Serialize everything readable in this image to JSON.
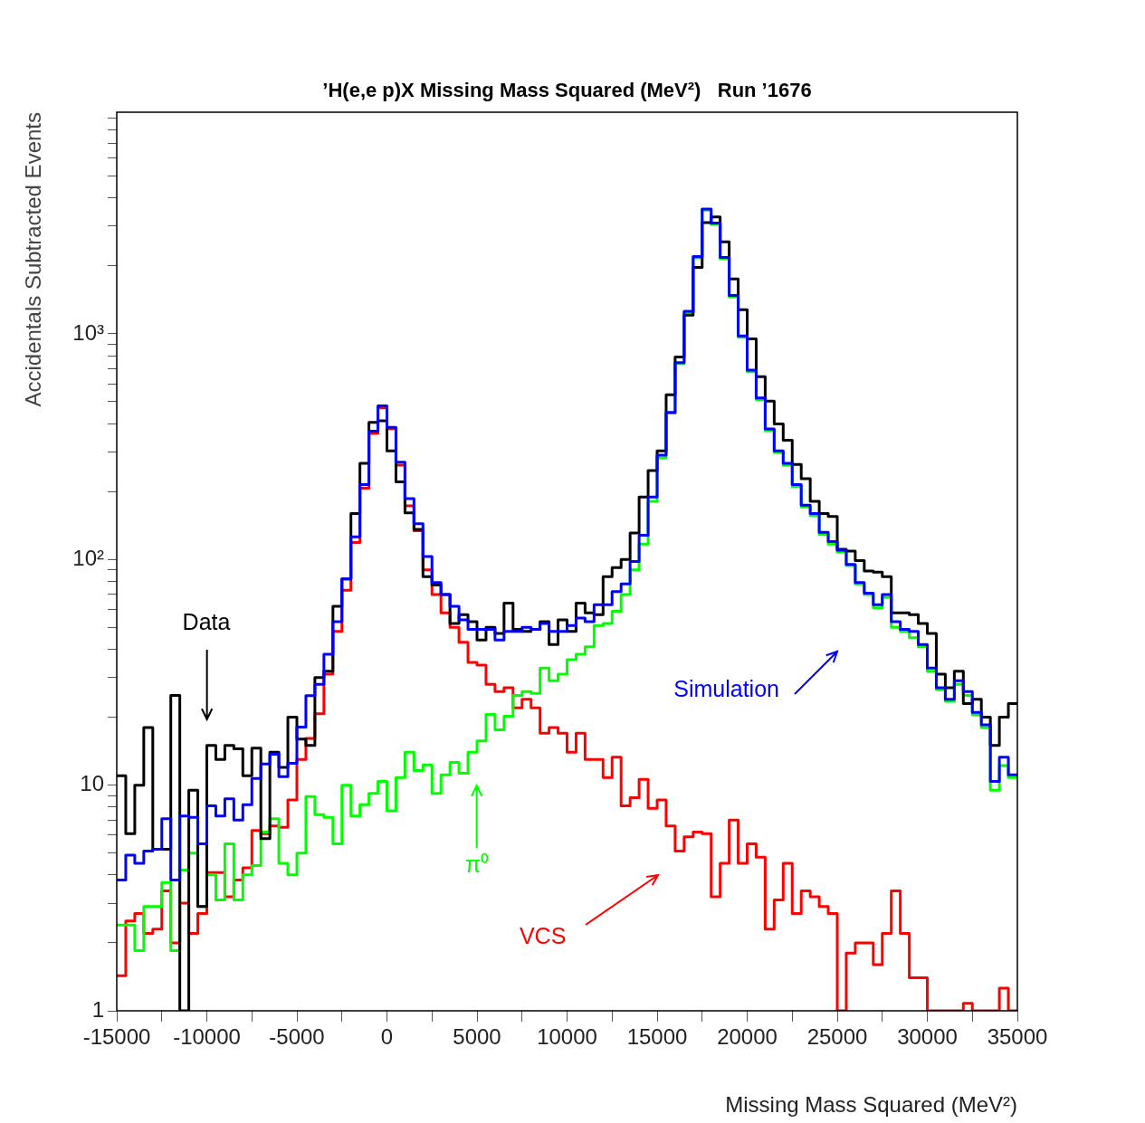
{
  "chart_data": {
    "type": "histogram",
    "title": "’H(e,e p)X Missing Mass Squared (MeV²)   Run ’1676",
    "xlabel": "Missing Mass Squared (MeV²)",
    "ylabel": "Accidentals Subtracted Events",
    "bins": [
      -15000,
      -14500,
      -14000,
      -13500,
      -13000,
      -12500,
      -12000,
      -11500,
      -11000,
      -10500,
      -10000,
      -9500,
      -9000,
      -8500,
      -8000,
      -7500,
      -7000,
      -6500,
      -6000,
      -5500,
      -5000,
      -4500,
      -4000,
      -3500,
      -3000,
      -2500,
      -2000,
      -1500,
      -1000,
      -500,
      0,
      500,
      1000,
      1500,
      2000,
      2500,
      3000,
      3500,
      4000,
      4500,
      5000,
      5500,
      6000,
      6500,
      7000,
      7500,
      8000,
      8500,
      9000,
      9500,
      10000,
      10500,
      11000,
      11500,
      12000,
      12500,
      13000,
      13500,
      14000,
      14500,
      15000,
      15500,
      16000,
      16500,
      17000,
      17500,
      18000,
      18500,
      19000,
      19500,
      20000,
      20500,
      21000,
      21500,
      22000,
      22500,
      23000,
      23500,
      24000,
      24500,
      25000,
      25500,
      26000,
      26500,
      27000,
      27500,
      28000,
      28500,
      29000,
      29500,
      30000,
      30500,
      31000,
      31500,
      32000,
      32500,
      33000,
      33500,
      34000,
      34500,
      35000
    ],
    "series": [
      {
        "color": "#ff0000",
        "values": [
          1.43,
          2.5,
          2.7,
          2.2,
          2.3,
          3.4,
          2.0,
          3.0,
          2.2,
          2.7,
          4.1,
          4.1,
          3.2,
          3.8,
          4.3,
          6.3,
          6.1,
          6.6,
          6.5,
          8.6,
          13,
          16.1,
          20.7,
          31,
          48,
          73,
          119,
          207,
          362,
          470,
          380,
          262,
          173,
          134,
          90,
          70,
          58,
          50,
          43,
          35,
          34,
          28,
          26,
          27,
          22,
          24,
          22,
          17,
          18,
          17,
          14,
          17,
          13,
          13,
          10.8,
          13.3,
          8.1,
          8.8,
          10.6,
          7.9,
          8.6,
          6.6,
          5.1,
          5.9,
          6.2,
          6.1,
          3.2,
          4.5,
          7.0,
          4.5,
          5.5,
          4.8,
          2.3,
          3.1,
          4.5,
          2.7,
          3.4,
          3.2,
          2.9,
          2.7,
          null,
          1.8,
          2.0,
          2.0,
          1.6,
          2.2,
          3.4,
          2.2,
          1.4,
          1.4,
          null,
          null,
          null,
          null,
          1.08,
          null,
          null,
          null,
          1.26,
          null
        ]
      },
      {
        "color": "#00ff00",
        "values": [
          2.4,
          2.4,
          1.85,
          2.9,
          2.9,
          3.7,
          1.85,
          4.2,
          5.0,
          2.9,
          4.0,
          3.1,
          5.5,
          3.1,
          4.0,
          4.4,
          6.2,
          7.1,
          4.5,
          4.0,
          5.0,
          8.9,
          7.4,
          7.2,
          5.5,
          10,
          7.3,
          8.2,
          9.2,
          10.4,
          7.7,
          10.8,
          14,
          11.6,
          12.3,
          9.2,
          11.1,
          12.6,
          11.3,
          14,
          15.7,
          20.6,
          17.6,
          20.2,
          25,
          26,
          25.5,
          33,
          29,
          31,
          36,
          38,
          41,
          51,
          52,
          59,
          70,
          90,
          117,
          181,
          282,
          445,
          740,
          1240,
          2170,
          3530,
          3060,
          2150,
          1460,
          965,
          680,
          512,
          373,
          298,
          262,
          211,
          171,
          157,
          129,
          117,
          108,
          94,
          78,
          70,
          61,
          68,
          50,
          48,
          45,
          41,
          32,
          26.5,
          23.5,
          28,
          25,
          20.5,
          18,
          9.5,
          12.2,
          10.8
        ]
      },
      {
        "color": "#000000",
        "values": [
          11,
          6.1,
          10,
          18,
          5.2,
          5.2,
          25,
          null,
          9.5,
          2.9,
          15,
          13,
          15,
          14.5,
          11,
          14.6,
          5.8,
          14,
          12,
          20,
          16,
          15,
          30,
          32,
          62,
          82,
          160,
          267,
          405,
          412,
          303,
          221,
          161,
          136,
          84,
          77,
          70,
          52,
          57,
          53,
          44,
          50,
          47,
          64,
          49,
          48,
          49,
          53,
          42,
          54,
          48,
          64,
          58,
          57,
          84,
          92,
          100,
          131,
          189,
          248,
          303,
          537,
          789,
          1210,
          1970,
          3110,
          3300,
          2560,
          1750,
          1280,
          950,
          646,
          504,
          399,
          338,
          264,
          228,
          181,
          160,
          155,
          111,
          109,
          99,
          89,
          88,
          84,
          58,
          58,
          57,
          52,
          47,
          31,
          27,
          32,
          23,
          24,
          20,
          15,
          20,
          23
        ]
      },
      {
        "color": "#0000ff",
        "values": [
          3.8,
          4.9,
          4.5,
          5.1,
          5.2,
          7.1,
          3.8,
          7.3,
          7.2,
          5.5,
          8.1,
          7.3,
          8.7,
          7.0,
          8.2,
          10.7,
          12.4,
          13.7,
          10.9,
          12.5,
          18.1,
          24.9,
          28,
          38,
          53,
          82,
          126,
          215,
          370,
          480,
          385,
          270,
          186,
          144,
          103,
          79,
          70,
          62,
          54,
          49,
          49,
          49,
          44,
          48,
          48,
          50,
          49,
          52,
          48,
          48,
          51,
          55,
          53,
          63,
          63,
          72,
          78,
          98,
          128,
          189,
          290,
          449,
          746,
          1260,
          2200,
          3570,
          3100,
          2180,
          1480,
          979,
          691,
          520,
          379,
          303,
          267,
          215,
          174,
          160,
          132,
          120,
          110,
          95,
          79,
          71,
          63,
          70,
          53,
          49,
          48,
          42,
          33,
          27,
          24,
          29,
          26,
          21,
          18.5,
          10.4,
          13.3,
          11.1
        ]
      }
    ],
    "xlim": [
      -15000,
      35000
    ],
    "xticks": [
      -15000,
      {
        "value": -12500,
        "label": null
      },
      -10000,
      {
        "value": -7500,
        "label": null
      },
      -5000,
      {
        "value": -2500,
        "label": null
      },
      0,
      {
        "value": 2500,
        "label": null
      },
      5000,
      {
        "value": 7500,
        "label": null
      },
      10000,
      {
        "value": 12500,
        "label": null
      },
      15000,
      {
        "value": 17500,
        "label": null
      },
      20000,
      {
        "value": 22500,
        "label": null
      },
      25000,
      {
        "value": 27500,
        "label": null
      },
      30000,
      {
        "value": 32500,
        "label": null
      },
      35000
    ],
    "ylim": [
      1,
      9600
    ],
    "yticks": [
      1,
      {
        "value": 2,
        "label": null
      },
      {
        "value": 3,
        "label": null
      },
      {
        "value": 4,
        "label": null
      },
      {
        "value": 5,
        "label": null
      },
      {
        "value": 6,
        "label": null
      },
      {
        "value": 7,
        "label": null
      },
      {
        "value": 8,
        "label": null
      },
      {
        "value": 9,
        "label": null
      },
      10,
      {
        "value": 20,
        "label": null
      },
      {
        "value": 30,
        "label": null
      },
      {
        "value": 40,
        "label": null
      },
      {
        "value": 50,
        "label": null
      },
      {
        "value": 60,
        "label": null
      },
      {
        "value": 70,
        "label": null
      },
      {
        "value": 80,
        "label": null
      },
      {
        "value": 90,
        "label": null
      },
      {
        "value": 100,
        "label": "10²"
      },
      {
        "value": 200,
        "label": null
      },
      {
        "value": 300,
        "label": null
      },
      {
        "value": 400,
        "label": null
      },
      {
        "value": 500,
        "label": null
      },
      {
        "value": 600,
        "label": null
      },
      {
        "value": 700,
        "label": null
      },
      {
        "value": 800,
        "label": null
      },
      {
        "value": 900,
        "label": null
      },
      {
        "value": 1000,
        "label": "10³"
      },
      {
        "value": 2000,
        "label": null
      },
      {
        "value": 3000,
        "label": null
      },
      {
        "value": 4000,
        "label": null
      },
      {
        "value": 5000,
        "label": null
      },
      {
        "value": 6000,
        "label": null
      },
      {
        "value": 7000,
        "label": null
      },
      {
        "value": 8000,
        "label": null
      },
      {
        "value": 9000,
        "label": null
      }
    ],
    "log": "y",
    "annotations": [
      "VCS",
      "π⁰",
      "Data",
      "Simulation"
    ]
  }
}
